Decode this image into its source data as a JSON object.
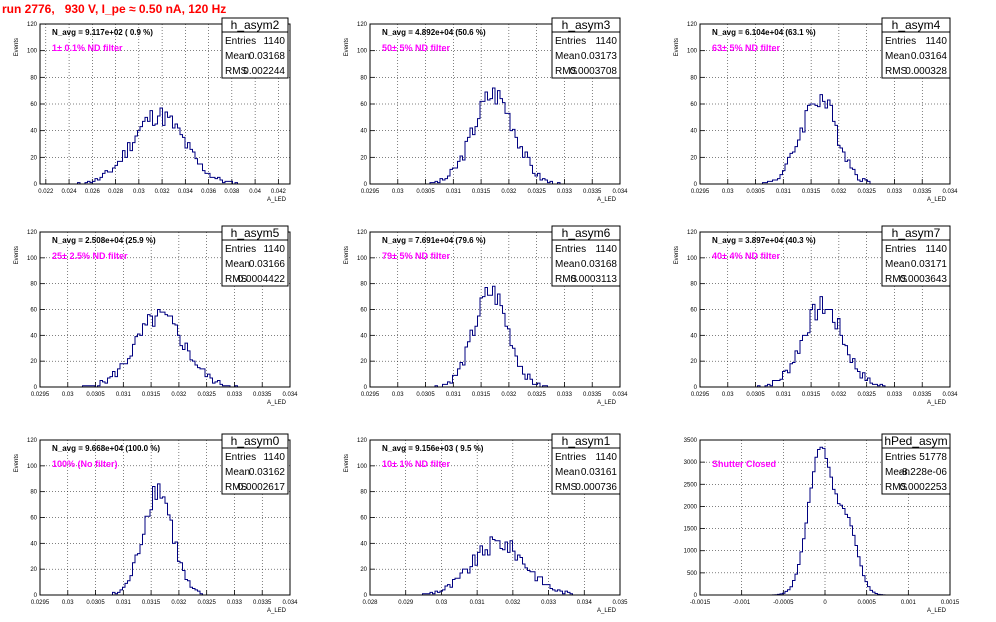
{
  "page_title": "run 2776,   930 V, I_pe ≈ 0.50 nA, 120 Hz",
  "colors": {
    "histogram": "#000080",
    "title": "#ff0000",
    "filter_text": "#ff00ff"
  },
  "chart_data": [
    {
      "type": "histogram",
      "name": "h_asym2",
      "navg": "N_avg = 9.117e+02 ( 0.9 %)",
      "filter": "1± 0.1% ND filter",
      "stats": [
        [
          "Entries",
          "1140"
        ],
        [
          "Mean",
          "0.03168"
        ],
        [
          "RMS",
          "0.002244"
        ]
      ],
      "ylabel": "Events",
      "xlabel": "A_LED",
      "xlim": [
        0.0215,
        0.043
      ],
      "ylim": [
        0,
        120
      ],
      "xticks": [
        "0.022",
        "0.024",
        "0.026",
        "0.028",
        "0.03",
        "0.032",
        "0.034",
        "0.036",
        "0.038",
        "0.04",
        "0.042"
      ],
      "yticks": [
        "0",
        "20",
        "40",
        "60",
        "80",
        "100",
        "120"
      ],
      "mean": 0.03168,
      "sigma": 0.002244,
      "peak": 52,
      "nbins": 100,
      "seed": 11
    },
    {
      "type": "histogram",
      "name": "h_asym3",
      "navg": "N_avg = 4.892e+04 (50.6 %)",
      "filter": "50± 5% ND filter",
      "stats": [
        [
          "Entries",
          "1140"
        ],
        [
          "Mean",
          "0.03173"
        ],
        [
          "RMS",
          "0.0003708"
        ]
      ],
      "ylabel": "Events",
      "xlabel": "A_LED",
      "xlim": [
        0.0295,
        0.034
      ],
      "ylim": [
        0,
        120
      ],
      "xticks": [
        "0.0295",
        "0.03",
        "0.0305",
        "0.031",
        "0.0315",
        "0.032",
        "0.0325",
        "0.033",
        "0.0335",
        "0.034"
      ],
      "yticks": [
        "0",
        "20",
        "40",
        "60",
        "80",
        "100",
        "120"
      ],
      "mean": 0.03173,
      "sigma": 0.0003708,
      "peak": 68,
      "nbins": 100,
      "seed": 3
    },
    {
      "type": "histogram",
      "name": "h_asym4",
      "navg": "N_avg = 6.104e+04 (63.1 %)",
      "filter": "63± 5% ND filter",
      "stats": [
        [
          "Entries",
          "1140"
        ],
        [
          "Mean",
          "0.03164"
        ],
        [
          "RMS",
          "0.000328"
        ]
      ],
      "ylabel": "Events",
      "xlabel": "A_LED",
      "xlim": [
        0.0295,
        0.034
      ],
      "ylim": [
        0,
        120
      ],
      "xticks": [
        "0.0295",
        "0.03",
        "0.0305",
        "0.031",
        "0.0315",
        "0.032",
        "0.0325",
        "0.033",
        "0.0335",
        "0.034"
      ],
      "yticks": [
        "0",
        "20",
        "40",
        "60",
        "80",
        "100",
        "120"
      ],
      "mean": 0.03164,
      "sigma": 0.000328,
      "peak": 65,
      "nbins": 100,
      "seed": 4
    },
    {
      "type": "histogram",
      "name": "h_asym5",
      "navg": "N_avg = 2.508e+04 (25.9 %)",
      "filter": "25± 2.5% ND filter",
      "stats": [
        [
          "Entries",
          "1140"
        ],
        [
          "Mean",
          "0.03166"
        ],
        [
          "RMS",
          "0.0004422"
        ]
      ],
      "ylabel": "Events",
      "xlabel": "A_LED",
      "xlim": [
        0.0295,
        0.034
      ],
      "ylim": [
        0,
        120
      ],
      "xticks": [
        "0.0295",
        "0.03",
        "0.0305",
        "0.031",
        "0.0315",
        "0.032",
        "0.0325",
        "0.033",
        "0.0335",
        "0.034"
      ],
      "yticks": [
        "0",
        "20",
        "40",
        "60",
        "80",
        "100",
        "120"
      ],
      "mean": 0.03166,
      "sigma": 0.0004422,
      "peak": 54,
      "nbins": 100,
      "seed": 5
    },
    {
      "type": "histogram",
      "name": "h_asym6",
      "navg": "N_avg = 7.691e+04 (79.6 %)",
      "filter": "79± 5% ND filter",
      "stats": [
        [
          "Entries",
          "1140"
        ],
        [
          "Mean",
          "0.03168"
        ],
        [
          "RMS",
          "0.0003113"
        ]
      ],
      "ylabel": "Events",
      "xlabel": "A_LED",
      "xlim": [
        0.0295,
        0.034
      ],
      "ylim": [
        0,
        120
      ],
      "xticks": [
        "0.0295",
        "0.03",
        "0.0305",
        "0.031",
        "0.0315",
        "0.032",
        "0.0325",
        "0.033",
        "0.0335",
        "0.034"
      ],
      "yticks": [
        "0",
        "20",
        "40",
        "60",
        "80",
        "100",
        "120"
      ],
      "mean": 0.03168,
      "sigma": 0.0003113,
      "peak": 73,
      "nbins": 100,
      "seed": 6
    },
    {
      "type": "histogram",
      "name": "h_asym7",
      "navg": "N_avg = 3.897e+04 (40.3 %)",
      "filter": "40± 4% ND filter",
      "stats": [
        [
          "Entries",
          "1140"
        ],
        [
          "Mean",
          "0.03171"
        ],
        [
          "RMS",
          "0.0003643"
        ]
      ],
      "ylabel": "Events",
      "xlabel": "A_LED",
      "xlim": [
        0.0295,
        0.034
      ],
      "ylim": [
        0,
        120
      ],
      "xticks": [
        "0.0295",
        "0.03",
        "0.0305",
        "0.031",
        "0.0315",
        "0.032",
        "0.0325",
        "0.033",
        "0.0335",
        "0.034"
      ],
      "yticks": [
        "0",
        "20",
        "40",
        "60",
        "80",
        "100",
        "120"
      ],
      "mean": 0.03171,
      "sigma": 0.0003643,
      "peak": 62,
      "nbins": 100,
      "seed": 7
    },
    {
      "type": "histogram",
      "name": "h_asym0",
      "navg": "N_avg = 9.668e+04 (100.0 %)",
      "filter": "100% (No filter)",
      "stats": [
        [
          "Entries",
          "1140"
        ],
        [
          "Mean",
          "0.03162"
        ],
        [
          "RMS",
          "0.0002617"
        ]
      ],
      "ylabel": "Events",
      "xlabel": "A_LED",
      "xlim": [
        0.0295,
        0.034
      ],
      "ylim": [
        0,
        120
      ],
      "xticks": [
        "0.0295",
        "0.03",
        "0.0305",
        "0.031",
        "0.0315",
        "0.032",
        "0.0325",
        "0.033",
        "0.0335",
        "0.034"
      ],
      "yticks": [
        "0",
        "20",
        "40",
        "60",
        "80",
        "100",
        "120"
      ],
      "mean": 0.03162,
      "sigma": 0.0002617,
      "peak": 83,
      "nbins": 100,
      "seed": 8
    },
    {
      "type": "histogram",
      "name": "h_asym1",
      "navg": "N_avg = 9.156e+03 ( 9.5 %)",
      "filter": "10± 1% ND filter",
      "stats": [
        [
          "Entries",
          "1140"
        ],
        [
          "Mean",
          "0.03161"
        ],
        [
          "RMS",
          "0.000736"
        ]
      ],
      "ylabel": "Events",
      "xlabel": "A_LED",
      "xlim": [
        0.028,
        0.035
      ],
      "ylim": [
        0,
        120
      ],
      "xticks": [
        "0.028",
        "0.029",
        "0.03",
        "0.031",
        "0.032",
        "0.033",
        "0.034",
        "0.035"
      ],
      "yticks": [
        "0",
        "20",
        "40",
        "60",
        "80",
        "100",
        "120"
      ],
      "mean": 0.03161,
      "sigma": 0.000736,
      "peak": 40,
      "nbins": 100,
      "seed": 9
    },
    {
      "type": "histogram",
      "name": "hPed_asym",
      "navg": "",
      "filter": "Shutter Closed",
      "stats": [
        [
          "Entries",
          "51778"
        ],
        [
          "Mean",
          "-8.228e-06"
        ],
        [
          "RMS",
          "0.0002253"
        ]
      ],
      "ylabel": "",
      "xlabel": "A_LED",
      "xlim": [
        -0.0015,
        0.0015
      ],
      "ylim": [
        0,
        3500
      ],
      "xticks": [
        "-0.0015",
        "-0.001",
        "-0.0005",
        "0",
        "0.0005",
        "0.001",
        "0.0015"
      ],
      "yticks": [
        "0",
        "500",
        "1000",
        "1500",
        "2000",
        "2500",
        "3000",
        "3500"
      ],
      "mean": -5e-05,
      "sigma": 0.00015,
      "peak": 3300,
      "nbins": 100,
      "seed": 10,
      "secondary": {
        "mean": 0.00028,
        "sigma": 0.00012,
        "peak": 1450
      }
    }
  ]
}
